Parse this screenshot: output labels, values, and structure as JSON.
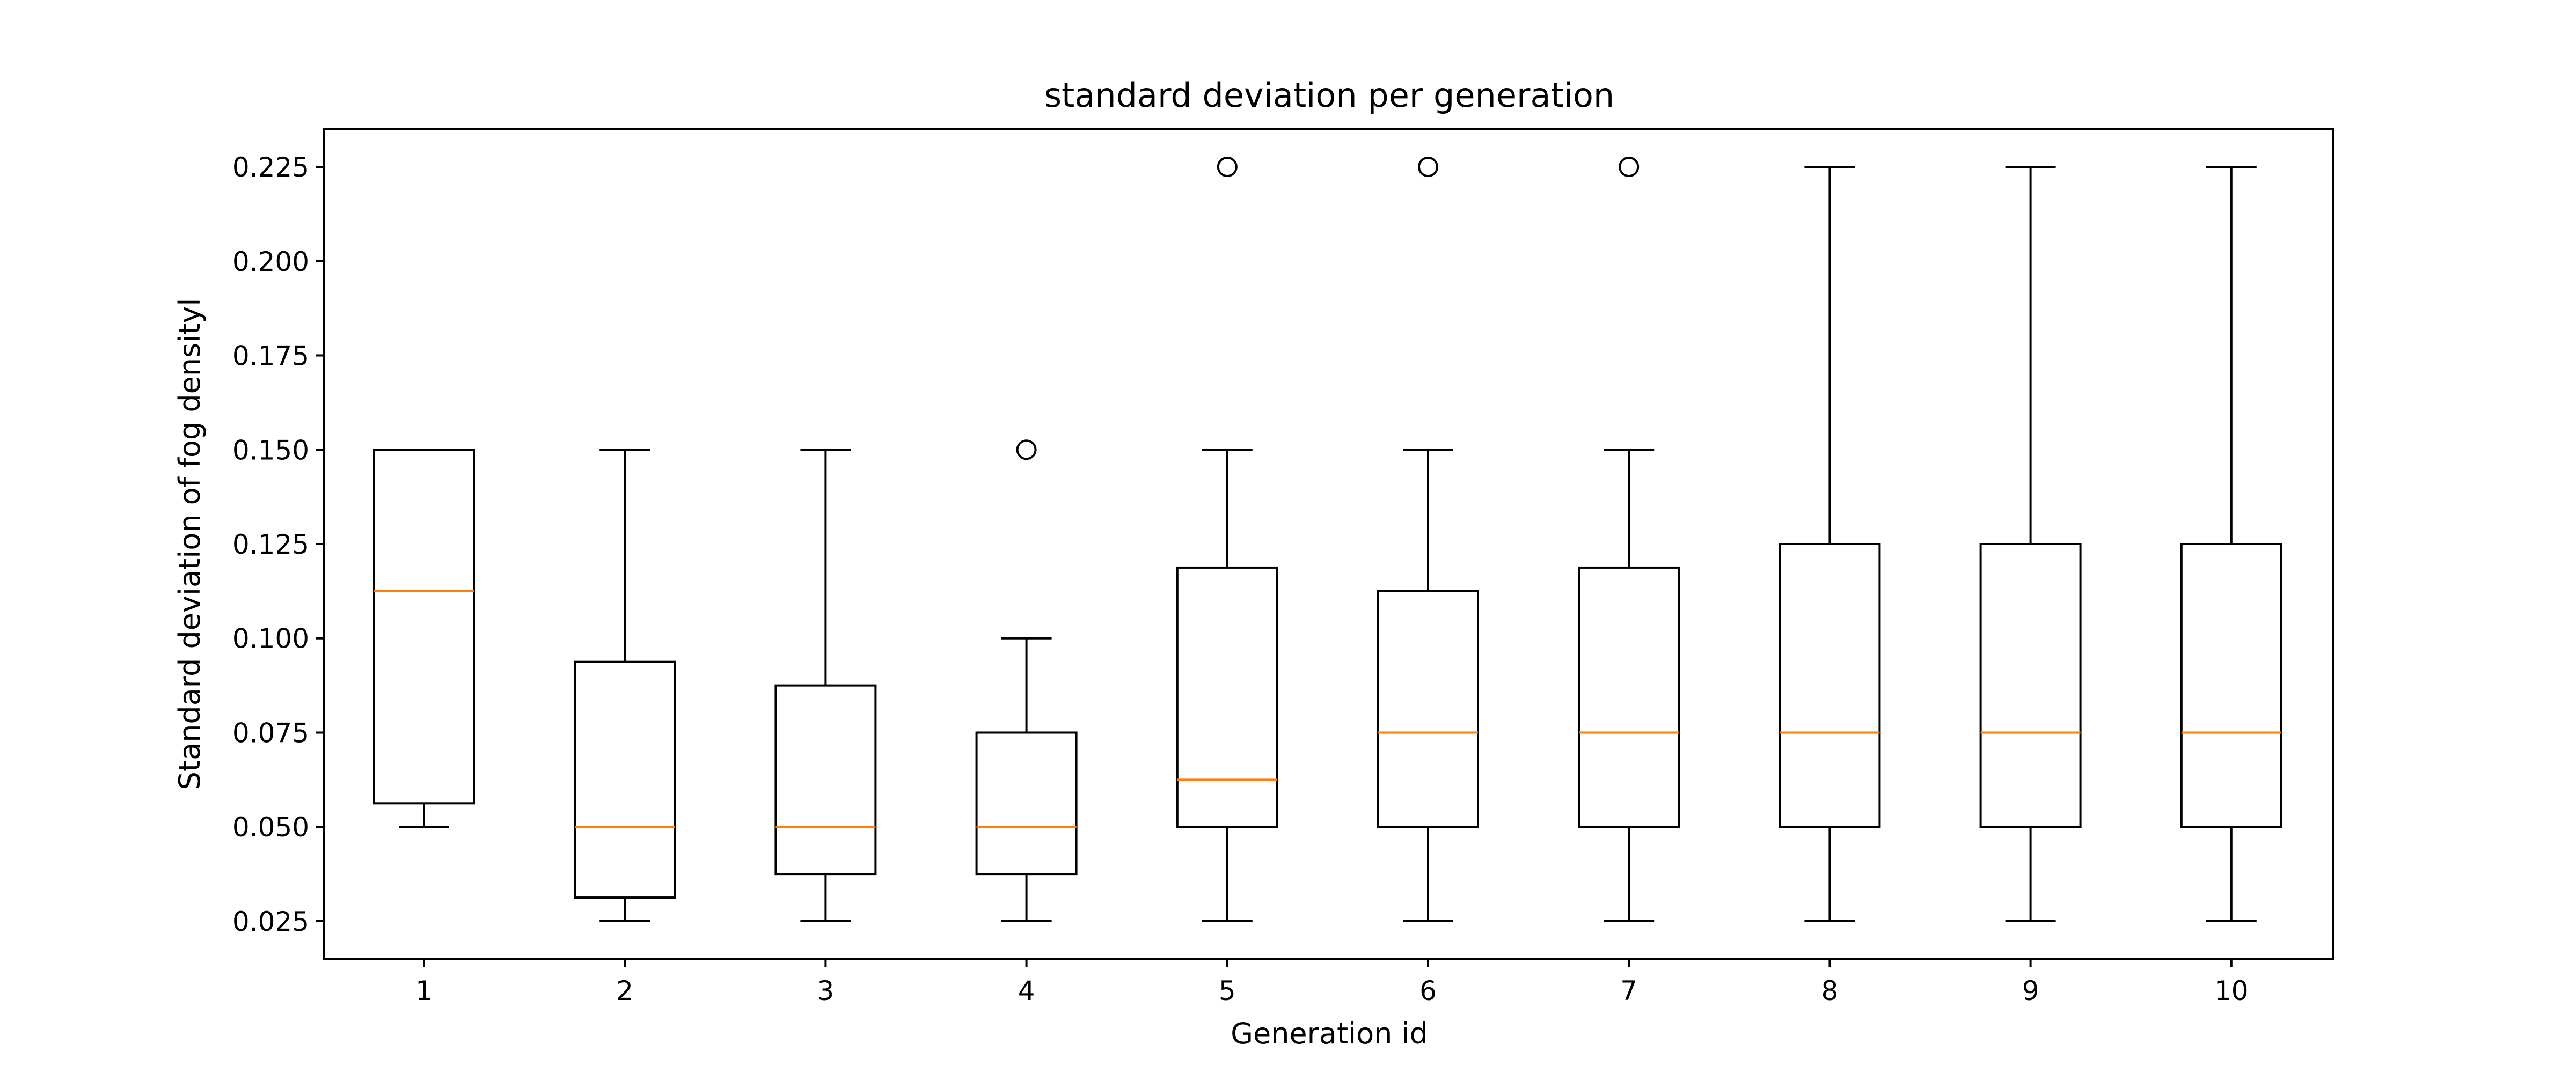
{
  "chart_data": {
    "type": "boxplot",
    "title": "standard deviation per generation",
    "xlabel": "Generation id",
    "ylabel": "Standard deviation of fog densityl",
    "ylim": [
      0.0149,
      0.2351
    ],
    "yticks": [
      0.025,
      0.05,
      0.075,
      0.1,
      0.125,
      0.15,
      0.175,
      0.2,
      0.225
    ],
    "ytick_labels": [
      "0.025",
      "0.050",
      "0.075",
      "0.100",
      "0.125",
      "0.150",
      "0.175",
      "0.200",
      "0.225"
    ],
    "categories": [
      "1",
      "2",
      "3",
      "4",
      "5",
      "6",
      "7",
      "8",
      "9",
      "10"
    ],
    "grid": false,
    "box_color": "#000000",
    "median_color": "#ff7f0e",
    "boxes": [
      {
        "whisker_low": 0.05,
        "q1": 0.05625,
        "median": 0.1125,
        "q3": 0.15,
        "whisker_high": 0.15,
        "outliers": []
      },
      {
        "whisker_low": 0.025,
        "q1": 0.03125,
        "median": 0.05,
        "q3": 0.09375,
        "whisker_high": 0.15,
        "outliers": []
      },
      {
        "whisker_low": 0.025,
        "q1": 0.0375,
        "median": 0.05,
        "q3": 0.0875,
        "whisker_high": 0.15,
        "outliers": []
      },
      {
        "whisker_low": 0.025,
        "q1": 0.0375,
        "median": 0.05,
        "q3": 0.075,
        "whisker_high": 0.1,
        "outliers": [
          0.15
        ]
      },
      {
        "whisker_low": 0.025,
        "q1": 0.05,
        "median": 0.0625,
        "q3": 0.11875,
        "whisker_high": 0.15,
        "outliers": [
          0.225
        ]
      },
      {
        "whisker_low": 0.025,
        "q1": 0.05,
        "median": 0.075,
        "q3": 0.1125,
        "whisker_high": 0.15,
        "outliers": [
          0.225
        ]
      },
      {
        "whisker_low": 0.025,
        "q1": 0.05,
        "median": 0.075,
        "q3": 0.11875,
        "whisker_high": 0.15,
        "outliers": [
          0.225
        ]
      },
      {
        "whisker_low": 0.025,
        "q1": 0.05,
        "median": 0.075,
        "q3": 0.125,
        "whisker_high": 0.225,
        "outliers": []
      },
      {
        "whisker_low": 0.025,
        "q1": 0.05,
        "median": 0.075,
        "q3": 0.125,
        "whisker_high": 0.225,
        "outliers": []
      },
      {
        "whisker_low": 0.025,
        "q1": 0.05,
        "median": 0.075,
        "q3": 0.125,
        "whisker_high": 0.225,
        "outliers": []
      }
    ]
  }
}
